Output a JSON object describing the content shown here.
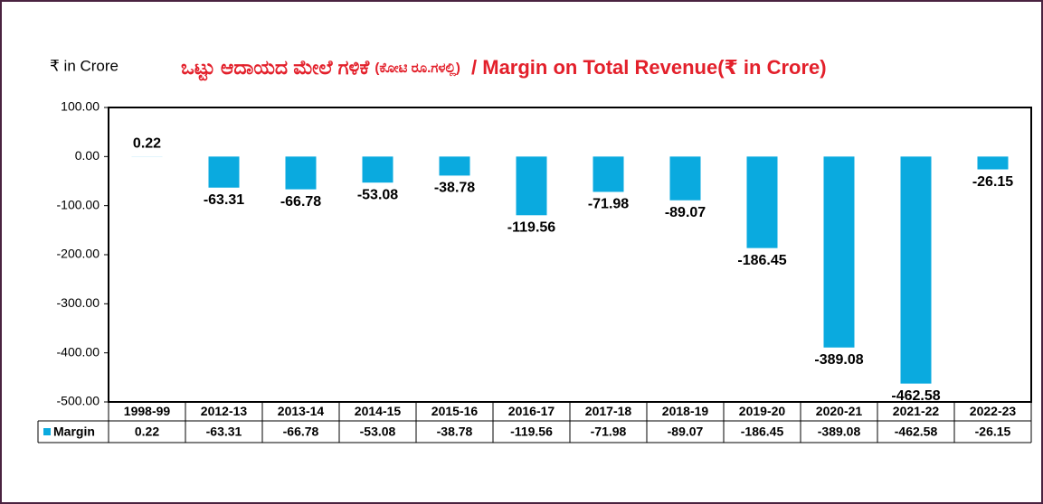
{
  "chart_data": {
    "type": "bar",
    "y_label": "₹ in Crore",
    "title": {
      "main": "ಒಟ್ಟು ಆದಾಯದ ಮೇಲೆ ಗಳಿಕೆ",
      "unit": "(ಕೋಟಿ ರೂ.ಗಳಲ್ಲಿ)",
      "english": "/ Margin on Total Revenue(₹ in Crore)"
    },
    "categories": [
      "1998-99",
      "2012-13",
      "2013-14",
      "2014-15",
      "2015-16",
      "2016-17",
      "2017-18",
      "2018-19",
      "2019-20",
      "2020-21",
      "2021-22",
      "2022-23"
    ],
    "series": [
      {
        "name": "Margin",
        "color": "#0aaadf",
        "values": [
          0.22,
          -63.31,
          -66.78,
          -53.08,
          -38.78,
          -119.56,
          -71.98,
          -89.07,
          -186.45,
          -389.08,
          -462.58,
          -26.15
        ]
      }
    ],
    "ylim": [
      -500,
      100
    ],
    "yticks": [
      {
        "value": -500,
        "label": "-500.00"
      },
      {
        "value": -400,
        "label": "-400.00"
      },
      {
        "value": -300,
        "label": "-300.00"
      },
      {
        "value": -200,
        "label": "-200.00"
      },
      {
        "value": -100,
        "label": "-100.00"
      },
      {
        "value": 0,
        "label": "0.00"
      },
      {
        "value": 100,
        "label": "100.00"
      }
    ],
    "data_table": true
  }
}
